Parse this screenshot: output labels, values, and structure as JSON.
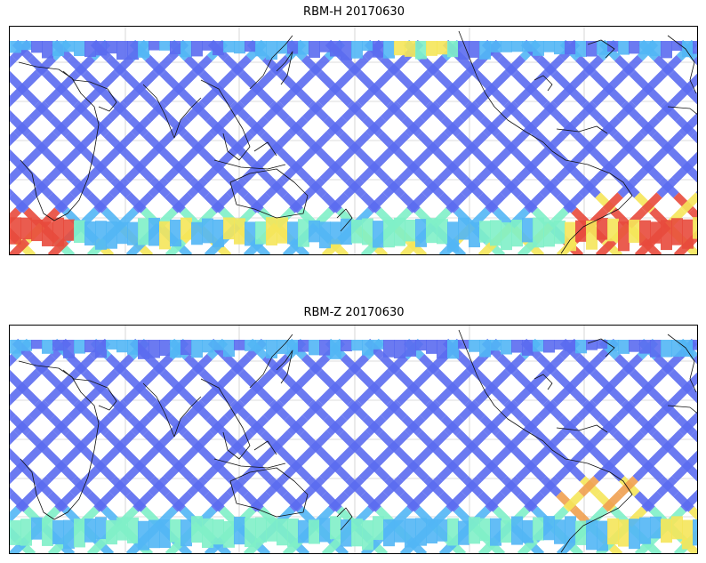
{
  "panels": [
    {
      "title": "RBM-H 20170630",
      "colors": {
        "low": "#5b6bf0",
        "mid": "#52b6f5",
        "mid2": "#7ff0c8",
        "high": "#f5e65a",
        "max": "#e84a3c"
      }
    },
    {
      "title": "RBM-Z 20170630",
      "colors": {
        "low": "#5b6bf0",
        "mid": "#52b6f5",
        "mid2": "#7ff0c8",
        "high": "#f5e65a",
        "max": "#f0a050"
      }
    }
  ]
}
